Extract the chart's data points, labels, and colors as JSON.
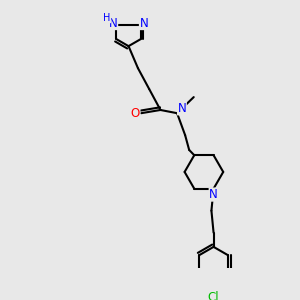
{
  "background_color": "#e8e8e8",
  "atom_colors": {
    "N": "#0000ff",
    "O": "#ff0000",
    "Cl": "#00bb00",
    "C": "#000000",
    "H": "#0000ff"
  },
  "bond_color": "#000000",
  "bond_width": 1.5,
  "font_size_atom": 8.5
}
